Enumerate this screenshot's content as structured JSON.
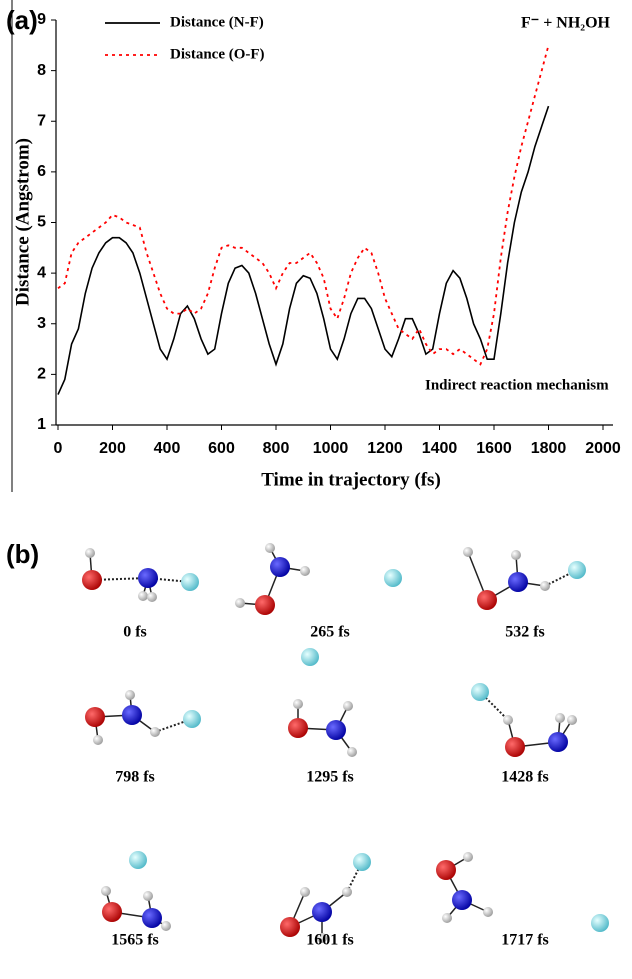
{
  "chart_data": {
    "type": "line",
    "panel_label": "(a)",
    "annotation": "F⁻ + NH₂OH",
    "note": "Indirect reaction mechanism",
    "xlabel": "Time in trajectory (fs)",
    "ylabel": "Distance (Angstrom)",
    "xlim": [
      0,
      2000
    ],
    "ylim": [
      1,
      9
    ],
    "xticks": [
      0,
      200,
      400,
      600,
      800,
      1000,
      1200,
      1400,
      1600,
      1800,
      2000
    ],
    "yticks": [
      1,
      2,
      3,
      4,
      5,
      6,
      7,
      8,
      9
    ],
    "x": [
      0,
      25,
      50,
      75,
      100,
      125,
      150,
      175,
      200,
      225,
      250,
      275,
      300,
      325,
      350,
      375,
      400,
      425,
      450,
      475,
      500,
      525,
      550,
      575,
      600,
      625,
      650,
      675,
      700,
      725,
      750,
      775,
      800,
      825,
      850,
      875,
      900,
      925,
      950,
      975,
      1000,
      1025,
      1050,
      1075,
      1100,
      1125,
      1150,
      1175,
      1200,
      1225,
      1250,
      1275,
      1300,
      1325,
      1350,
      1375,
      1400,
      1425,
      1450,
      1475,
      1500,
      1525,
      1550,
      1575,
      1600,
      1625,
      1650,
      1675,
      1700,
      1725,
      1750,
      1775,
      1800
    ],
    "series": [
      {
        "name": "Distance (N-F)",
        "color": "#000000",
        "dash": "solid",
        "values": [
          1.6,
          1.9,
          2.6,
          2.9,
          3.6,
          4.1,
          4.4,
          4.6,
          4.7,
          4.7,
          4.6,
          4.4,
          4.0,
          3.5,
          3.0,
          2.5,
          2.3,
          2.7,
          3.2,
          3.35,
          3.1,
          2.7,
          2.4,
          2.5,
          3.2,
          3.8,
          4.1,
          4.15,
          4.0,
          3.6,
          3.1,
          2.6,
          2.2,
          2.6,
          3.3,
          3.8,
          3.95,
          3.9,
          3.6,
          3.1,
          2.5,
          2.3,
          2.7,
          3.2,
          3.5,
          3.5,
          3.3,
          2.9,
          2.5,
          2.35,
          2.7,
          3.1,
          3.1,
          2.8,
          2.4,
          2.5,
          3.2,
          3.8,
          4.05,
          3.9,
          3.5,
          3.0,
          2.7,
          2.3,
          2.3,
          3.2,
          4.2,
          5.0,
          5.6,
          6.0,
          6.5,
          6.9,
          7.3
        ]
      },
      {
        "name": "Distance (O-F)",
        "color": "#ff0000",
        "dash": "dotted",
        "values": [
          3.7,
          3.8,
          4.4,
          4.6,
          4.7,
          4.8,
          4.9,
          5.0,
          5.15,
          5.1,
          5.0,
          4.95,
          4.9,
          4.4,
          4.0,
          3.6,
          3.3,
          3.2,
          3.2,
          3.3,
          3.2,
          3.3,
          3.6,
          4.1,
          4.5,
          4.55,
          4.5,
          4.5,
          4.4,
          4.3,
          4.2,
          4.0,
          3.7,
          4.0,
          4.2,
          4.2,
          4.3,
          4.4,
          4.2,
          3.9,
          3.3,
          3.1,
          3.5,
          4.0,
          4.3,
          4.5,
          4.4,
          4.0,
          3.5,
          3.2,
          2.9,
          2.8,
          2.7,
          2.9,
          2.6,
          2.4,
          2.5,
          2.5,
          2.4,
          2.5,
          2.4,
          2.3,
          2.2,
          2.5,
          3.2,
          4.3,
          5.2,
          5.9,
          6.5,
          7.0,
          7.5,
          8.0,
          8.5
        ]
      }
    ]
  },
  "snapshots": {
    "panel_label": "(b)",
    "times": [
      "0 fs",
      "265 fs",
      "532 fs",
      "798 fs",
      "1295 fs",
      "1428 fs",
      "1565 fs",
      "1601 fs",
      "1717 fs"
    ]
  }
}
